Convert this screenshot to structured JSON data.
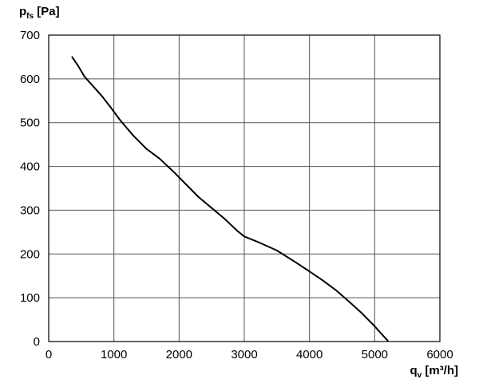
{
  "chart_data": {
    "type": "line",
    "title": "",
    "ylabel": {
      "symbol": "p",
      "subscript": "fs",
      "unit": "[Pa]"
    },
    "xlabel": {
      "symbol": "q",
      "subscript": "v",
      "unit": "[m³/h]"
    },
    "xlim": [
      0,
      6000
    ],
    "ylim": [
      0,
      700
    ],
    "xticks": [
      "0",
      "1000",
      "2000",
      "3000",
      "4000",
      "5000",
      "6000"
    ],
    "yticks": [
      "0",
      "100",
      "200",
      "300",
      "400",
      "500",
      "600",
      "700"
    ],
    "grid": true,
    "series": [
      {
        "color": "#000000",
        "x": [
          360,
          450,
          550,
          700,
          820,
          950,
          1100,
          1300,
          1500,
          1700,
          1900,
          2100,
          2300,
          2500,
          2700,
          2900,
          3000,
          3200,
          3500,
          3800,
          4000,
          4200,
          4400,
          4600,
          4800,
          5000,
          5100,
          5200
        ],
        "y": [
          650,
          630,
          605,
          580,
          560,
          535,
          505,
          470,
          440,
          418,
          390,
          360,
          330,
          305,
          280,
          252,
          240,
          228,
          208,
          180,
          160,
          140,
          118,
          92,
          65,
          35,
          18,
          2
        ]
      }
    ]
  }
}
